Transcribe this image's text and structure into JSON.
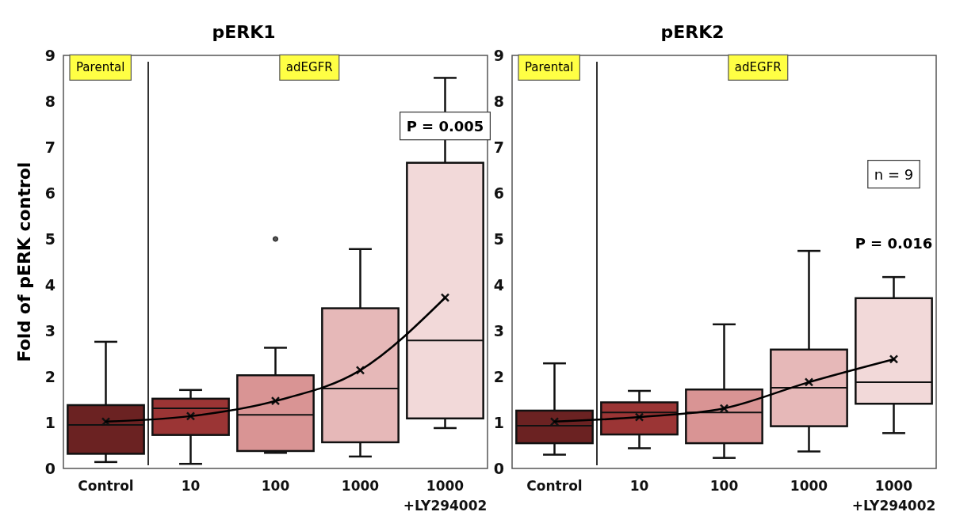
{
  "chart_data": [
    {
      "type": "box",
      "title": "pERK1",
      "ylabel": "Fold of pERK control",
      "categories": [
        "Control",
        "10",
        "100",
        "1000",
        "1000\n+LY294002"
      ],
      "colors": [
        "#6b2222",
        "#9b3535",
        "#d99494",
        "#e6b8b8",
        "#f2d9d9"
      ],
      "boxes": [
        {
          "low": 0.14,
          "q1": 0.32,
          "median": 0.95,
          "q3": 1.38,
          "high": 2.76,
          "mean": 1.02
        },
        {
          "low": 0.1,
          "q1": 0.73,
          "median": 1.31,
          "q3": 1.52,
          "high": 1.71,
          "mean": 1.14
        },
        {
          "low": 0.34,
          "q1": 0.38,
          "median": 1.17,
          "q3": 2.03,
          "high": 2.63,
          "mean": 1.47,
          "outliers": [
            5.0
          ]
        },
        {
          "low": 0.26,
          "q1": 0.57,
          "median": 1.74,
          "q3": 3.49,
          "high": 4.78,
          "mean": 2.14
        },
        {
          "low": 0.88,
          "q1": 1.09,
          "median": 2.79,
          "q3": 6.66,
          "high": 8.51,
          "mean": 3.72
        }
      ],
      "series": [
        {
          "type": "line",
          "color": "#000000",
          "values": [
            1.02,
            1.14,
            1.47,
            2.14,
            3.72
          ]
        }
      ],
      "ylim": [
        0,
        9
      ],
      "yticks": [
        0,
        1,
        2,
        3,
        4,
        5,
        6,
        7,
        8,
        9
      ],
      "annotations": [
        "Parental",
        "adEGFR",
        "P = 0.005"
      ]
    },
    {
      "type": "box",
      "title": "pERK2",
      "categories": [
        "Control",
        "10",
        "100",
        "1000",
        "1000\n+LY294002"
      ],
      "colors": [
        "#6b2222",
        "#9b3535",
        "#d99494",
        "#e6b8b8",
        "#f2d9d9"
      ],
      "boxes": [
        {
          "low": 0.3,
          "q1": 0.55,
          "median": 0.93,
          "q3": 1.26,
          "high": 2.29,
          "mean": 1.02
        },
        {
          "low": 0.44,
          "q1": 0.74,
          "median": 1.22,
          "q3": 1.44,
          "high": 1.69,
          "mean": 1.12
        },
        {
          "low": 0.23,
          "q1": 0.55,
          "median": 1.22,
          "q3": 1.72,
          "high": 3.14,
          "mean": 1.31
        },
        {
          "low": 0.37,
          "q1": 0.92,
          "median": 1.76,
          "q3": 2.59,
          "high": 4.74,
          "mean": 1.88
        },
        {
          "low": 0.77,
          "q1": 1.41,
          "median": 1.88,
          "q3": 3.71,
          "high": 4.17,
          "mean": 2.38
        }
      ],
      "series": [
        {
          "type": "line",
          "color": "#000000",
          "values": [
            1.02,
            1.12,
            1.31,
            1.88,
            2.38
          ]
        }
      ],
      "ylim": [
        0,
        9
      ],
      "yticks": [
        0,
        1,
        2,
        3,
        4,
        5,
        6,
        7,
        8,
        9
      ],
      "annotations": [
        "Parental",
        "adEGFR",
        "n = 9",
        "P = 0.016"
      ]
    }
  ]
}
